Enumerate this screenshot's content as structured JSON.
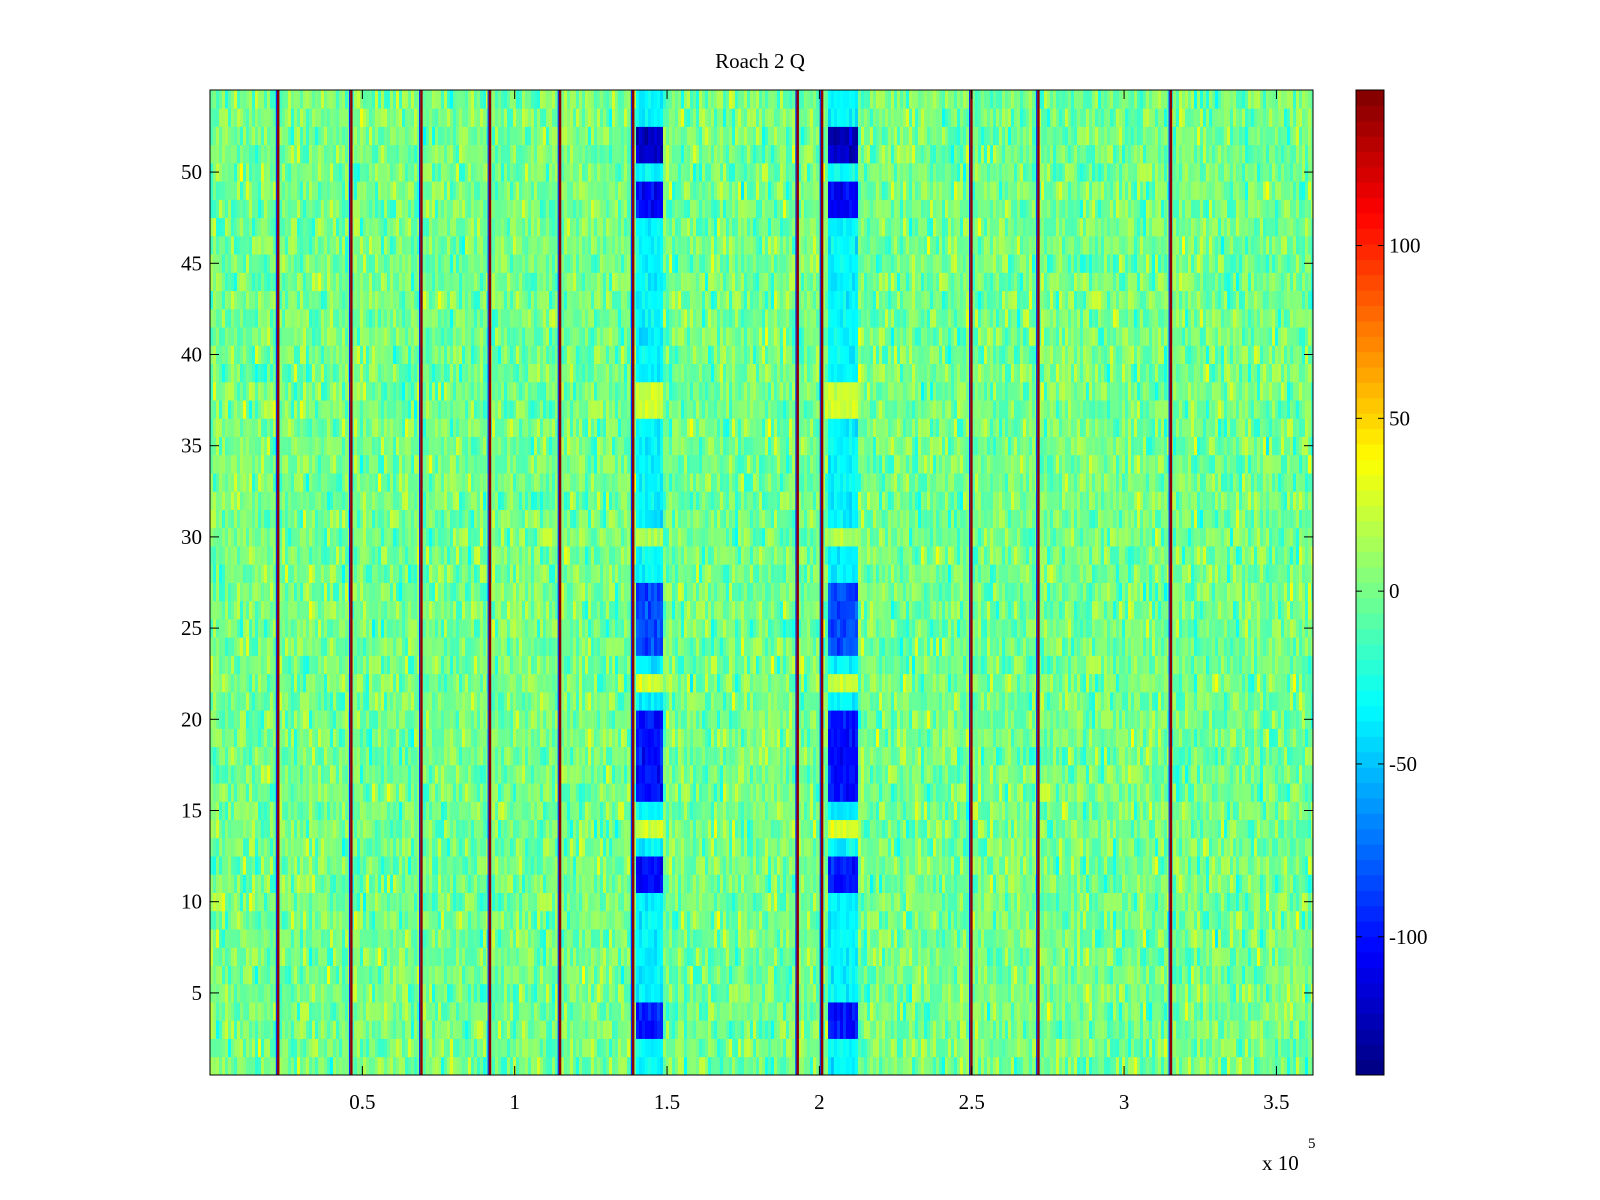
{
  "chart_data": {
    "type": "heatmap",
    "title": "Roach 2 Q",
    "xlabel": "",
    "ylabel": "",
    "x_range": [
      0,
      362000
    ],
    "y_range": [
      0.5,
      54.5
    ],
    "rows": 54,
    "x_exponent_label": "x 10",
    "x_exponent_power": "5",
    "x_ticks": [
      {
        "value": 50000,
        "label": "0.5"
      },
      {
        "value": 100000,
        "label": "1"
      },
      {
        "value": 150000,
        "label": "1.5"
      },
      {
        "value": 200000,
        "label": "2"
      },
      {
        "value": 250000,
        "label": "2.5"
      },
      {
        "value": 300000,
        "label": "3"
      },
      {
        "value": 350000,
        "label": "3.5"
      }
    ],
    "y_ticks": [
      {
        "value": 5,
        "label": "5"
      },
      {
        "value": 10,
        "label": "10"
      },
      {
        "value": 15,
        "label": "15"
      },
      {
        "value": 20,
        "label": "20"
      },
      {
        "value": 25,
        "label": "25"
      },
      {
        "value": 30,
        "label": "30"
      },
      {
        "value": 35,
        "label": "35"
      },
      {
        "value": 40,
        "label": "40"
      },
      {
        "value": 45,
        "label": "45"
      },
      {
        "value": 50,
        "label": "50"
      }
    ],
    "colorbar": {
      "colormap": "jet",
      "range": [
        -140,
        145
      ],
      "ticks": [
        {
          "value": -100,
          "label": "-100"
        },
        {
          "value": -50,
          "label": "-50"
        },
        {
          "value": 0,
          "label": "0"
        },
        {
          "value": 50,
          "label": "50"
        },
        {
          "value": 100,
          "label": "100"
        }
      ]
    },
    "background_level": 0,
    "background_noise": 22,
    "vertical_stripes": [
      {
        "x": 22000,
        "value": 140
      },
      {
        "x": 46000,
        "value": 140
      },
      {
        "x": 69000,
        "value": 140
      },
      {
        "x": 91500,
        "value": 140
      },
      {
        "x": 114500,
        "value": 140
      },
      {
        "x": 138500,
        "value": 140
      },
      {
        "x": 192500,
        "value": 140
      },
      {
        "x": 200500,
        "value": 140
      },
      {
        "x": 249500,
        "value": 140
      },
      {
        "x": 271500,
        "value": 140
      },
      {
        "x": 315000,
        "value": 140
      }
    ],
    "blue_columns": [
      {
        "x_start": 140000,
        "x_end": 149000
      },
      {
        "x_start": 203000,
        "x_end": 213000
      }
    ],
    "blue_column_row_levels": [
      {
        "rows": [
          3,
          4
        ],
        "value": -100
      },
      {
        "rows": [
          11,
          12
        ],
        "value": -100
      },
      {
        "rows": [
          14
        ],
        "value": 25
      },
      {
        "rows": [
          16,
          17,
          18,
          19,
          20
        ],
        "value": -100
      },
      {
        "rows": [
          22
        ],
        "value": 25
      },
      {
        "rows": [
          24,
          25,
          26,
          27
        ],
        "value": -85
      },
      {
        "rows": [
          30
        ],
        "value": 15
      },
      {
        "rows": [
          37,
          38
        ],
        "value": 25
      },
      {
        "rows": [
          48,
          49
        ],
        "value": -105
      },
      {
        "rows": [
          51,
          52
        ],
        "value": -120
      }
    ],
    "blue_column_default": -35
  }
}
